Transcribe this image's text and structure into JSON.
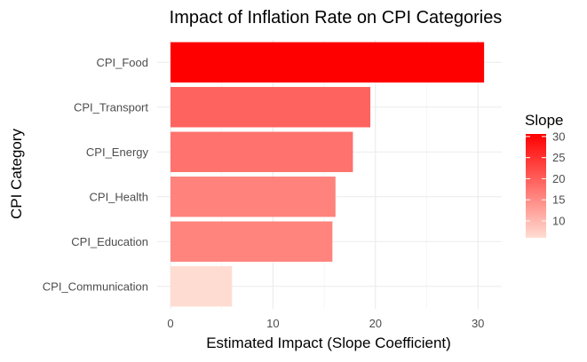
{
  "chart_data": {
    "type": "bar",
    "orientation": "horizontal",
    "title": "Impact of Inflation Rate on CPI Categories",
    "xlabel": "Estimated Impact (Slope Coefficient)",
    "ylabel": "CPI Category",
    "categories": [
      "CPI_Food",
      "CPI_Transport",
      "CPI_Energy",
      "CPI_Health",
      "CPI_Education",
      "CPI_Communication"
    ],
    "values": [
      30.6,
      19.5,
      17.8,
      16.1,
      15.8,
      6.0
    ],
    "xlim": [
      0,
      32
    ],
    "xticks": [
      0,
      10,
      20,
      30
    ],
    "grid": true,
    "legend": {
      "title": "Slope",
      "position": "right",
      "range": [
        6.0,
        30.6
      ],
      "ticks": [
        10,
        15,
        20,
        25,
        30
      ],
      "color_low": "#ffdcd2",
      "color_high": "#ff0000"
    }
  }
}
